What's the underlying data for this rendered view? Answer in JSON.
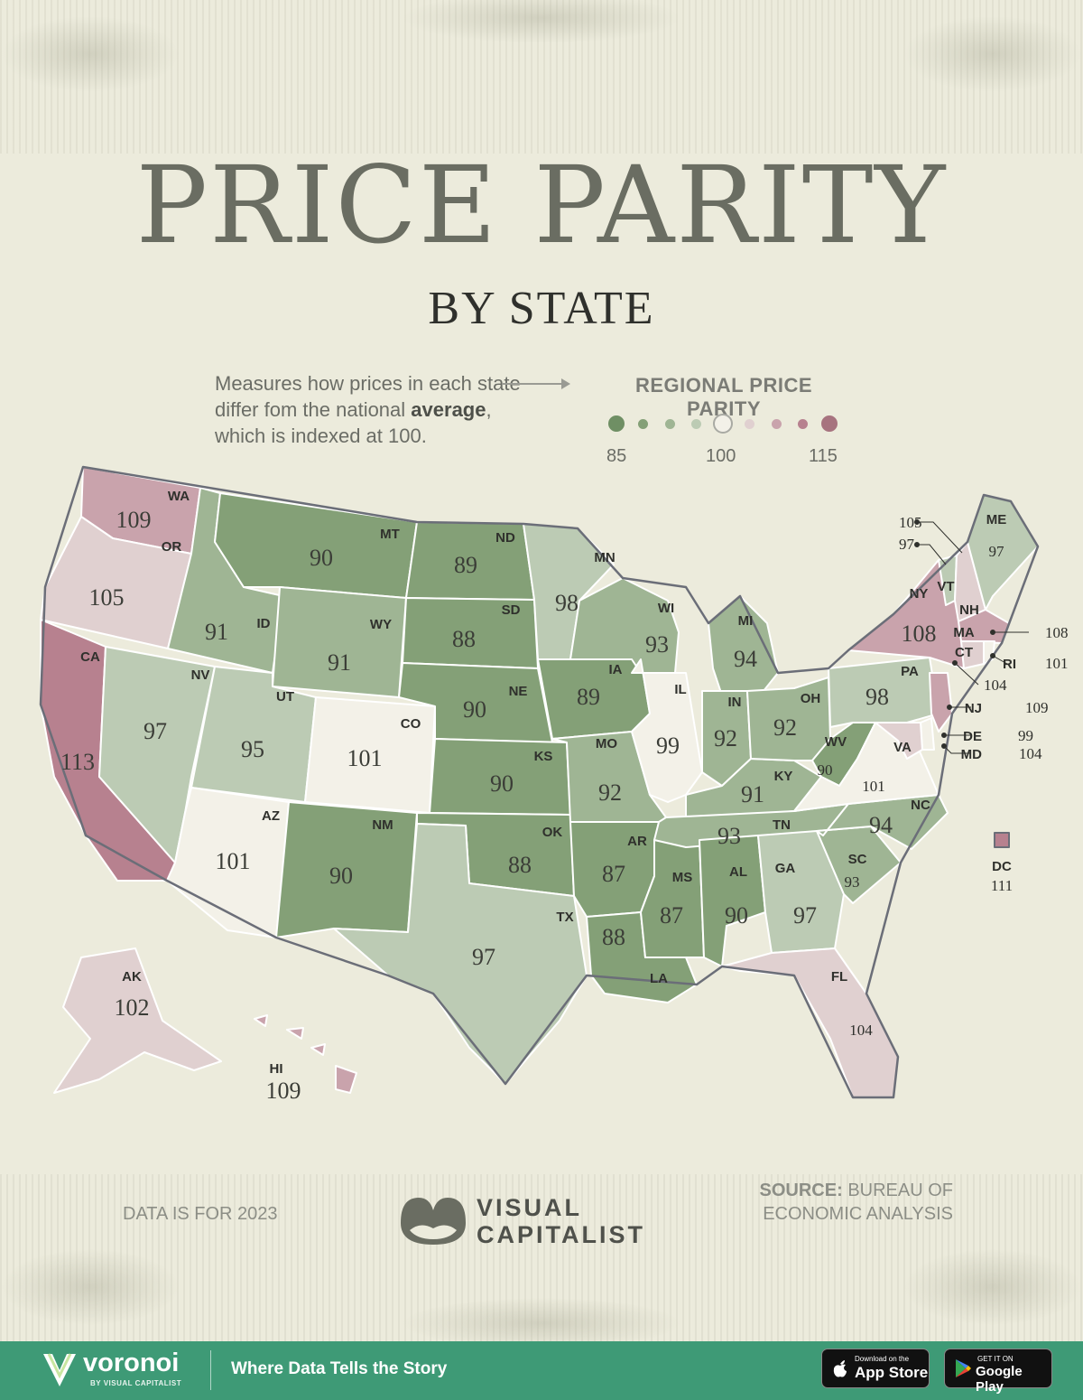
{
  "header": {
    "title": "PRICE PARITY",
    "subtitle": "BY STATE",
    "description_pre": "Measures how prices in each state differ fom the national ",
    "description_bold": "average",
    "description_post": ", which is indexed at 100."
  },
  "legend": {
    "title": "REGIONAL PRICE PARITY",
    "min_label": "85",
    "mid_label": "100",
    "max_label": "115",
    "scale_colors": [
      "#6f8f64",
      "#84a077",
      "#9fb594",
      "#bccbb4",
      "#f3f1e8",
      "#e0d0d0",
      "#c9a3ac",
      "#b7818f",
      "#a7737f"
    ]
  },
  "chart_data": {
    "type": "choropleth",
    "metric": "Regional Price Parity",
    "baseline": 100,
    "range": [
      85,
      115
    ],
    "states": [
      {
        "abbr": "WA",
        "value": 109
      },
      {
        "abbr": "OR",
        "value": 105
      },
      {
        "abbr": "CA",
        "value": 113
      },
      {
        "abbr": "ID",
        "value": 91
      },
      {
        "abbr": "NV",
        "value": 97
      },
      {
        "abbr": "MT",
        "value": 90
      },
      {
        "abbr": "WY",
        "value": 91
      },
      {
        "abbr": "UT",
        "value": 95
      },
      {
        "abbr": "AZ",
        "value": 101
      },
      {
        "abbr": "CO",
        "value": 101
      },
      {
        "abbr": "NM",
        "value": 90
      },
      {
        "abbr": "ND",
        "value": 89
      },
      {
        "abbr": "SD",
        "value": 88
      },
      {
        "abbr": "NE",
        "value": 90
      },
      {
        "abbr": "KS",
        "value": 90
      },
      {
        "abbr": "OK",
        "value": 88
      },
      {
        "abbr": "TX",
        "value": 97
      },
      {
        "abbr": "MN",
        "value": 98
      },
      {
        "abbr": "IA",
        "value": 89
      },
      {
        "abbr": "MO",
        "value": 92
      },
      {
        "abbr": "AR",
        "value": 87
      },
      {
        "abbr": "LA",
        "value": 88
      },
      {
        "abbr": "WI",
        "value": 93
      },
      {
        "abbr": "IL",
        "value": 99
      },
      {
        "abbr": "MS",
        "value": 87
      },
      {
        "abbr": "MI",
        "value": 94
      },
      {
        "abbr": "IN",
        "value": 92
      },
      {
        "abbr": "KY",
        "value": 91
      },
      {
        "abbr": "TN",
        "value": 93
      },
      {
        "abbr": "AL",
        "value": 90
      },
      {
        "abbr": "OH",
        "value": 92
      },
      {
        "abbr": "WV",
        "value": 90
      },
      {
        "abbr": "GA",
        "value": 97
      },
      {
        "abbr": "FL",
        "value": 104
      },
      {
        "abbr": "SC",
        "value": 93
      },
      {
        "abbr": "NC",
        "value": 94
      },
      {
        "abbr": "VA",
        "value": 101
      },
      {
        "abbr": "PA",
        "value": 98
      },
      {
        "abbr": "NY",
        "value": 108
      },
      {
        "abbr": "VT",
        "value": 97
      },
      {
        "abbr": "NH",
        "value": 105
      },
      {
        "abbr": "ME",
        "value": 97
      },
      {
        "abbr": "MA",
        "value": 108
      },
      {
        "abbr": "CT",
        "value": 104
      },
      {
        "abbr": "RI",
        "value": 101
      },
      {
        "abbr": "NJ",
        "value": 109
      },
      {
        "abbr": "DE",
        "value": 99
      },
      {
        "abbr": "MD",
        "value": 104
      },
      {
        "abbr": "DC",
        "value": 111
      },
      {
        "abbr": "AK",
        "value": 102
      },
      {
        "abbr": "HI",
        "value": 109
      }
    ]
  },
  "labels": {
    "WA": {
      "abbr": "WA",
      "value": "109"
    },
    "OR": {
      "abbr": "OR",
      "value": "105"
    },
    "CA": {
      "abbr": "CA",
      "value": "113"
    },
    "ID": {
      "abbr": "ID",
      "value": "91"
    },
    "NV": {
      "abbr": "NV",
      "value": "97"
    },
    "MT": {
      "abbr": "MT",
      "value": "90"
    },
    "WY": {
      "abbr": "WY",
      "value": "91"
    },
    "UT": {
      "abbr": "UT",
      "value": "95"
    },
    "AZ": {
      "abbr": "AZ",
      "value": "101"
    },
    "CO": {
      "abbr": "CO",
      "value": "101"
    },
    "NM": {
      "abbr": "NM",
      "value": "90"
    },
    "ND": {
      "abbr": "ND",
      "value": "89"
    },
    "SD": {
      "abbr": "SD",
      "value": "88"
    },
    "NE": {
      "abbr": "NE",
      "value": "90"
    },
    "KS": {
      "abbr": "KS",
      "value": "90"
    },
    "OK": {
      "abbr": "OK",
      "value": "88"
    },
    "TX": {
      "abbr": "TX",
      "value": "97"
    },
    "MN": {
      "abbr": "MN",
      "value": "98"
    },
    "IA": {
      "abbr": "IA",
      "value": "89"
    },
    "MO": {
      "abbr": "MO",
      "value": "92"
    },
    "AR": {
      "abbr": "AR",
      "value": "87"
    },
    "LA": {
      "abbr": "LA",
      "value": "88"
    },
    "WI": {
      "abbr": "WI",
      "value": "93"
    },
    "IL": {
      "abbr": "IL",
      "value": "99"
    },
    "MS": {
      "abbr": "MS",
      "value": "87"
    },
    "MI": {
      "abbr": "MI",
      "value": "94"
    },
    "IN": {
      "abbr": "IN",
      "value": "92"
    },
    "KY": {
      "abbr": "KY",
      "value": "91"
    },
    "TN": {
      "abbr": "TN",
      "value": "93"
    },
    "AL": {
      "abbr": "AL",
      "value": "90"
    },
    "OH": {
      "abbr": "OH",
      "value": "92"
    },
    "WV": {
      "abbr": "WV",
      "value": "90"
    },
    "GA": {
      "abbr": "GA",
      "value": "97"
    },
    "FL": {
      "abbr": "FL",
      "value": "104"
    },
    "SC": {
      "abbr": "SC",
      "value": "93"
    },
    "NC": {
      "abbr": "NC",
      "value": "94"
    },
    "VA": {
      "abbr": "VA",
      "value": "101"
    },
    "PA": {
      "abbr": "PA",
      "value": "98"
    },
    "NY": {
      "abbr": "NY",
      "value": "108"
    },
    "VT": {
      "abbr": "VT",
      "value": "97"
    },
    "NH": {
      "abbr": "NH",
      "value": "105"
    },
    "ME": {
      "abbr": "ME",
      "value": "97"
    },
    "MA": {
      "abbr": "MA",
      "value": "108"
    },
    "CT": {
      "abbr": "CT",
      "value": "104"
    },
    "RI": {
      "abbr": "RI",
      "value": "101"
    },
    "NJ": {
      "abbr": "NJ",
      "value": "109"
    },
    "DE": {
      "abbr": "DE",
      "value": "99"
    },
    "MD": {
      "abbr": "MD",
      "value": "104"
    },
    "DC": {
      "abbr": "DC",
      "value": "111"
    },
    "AK": {
      "abbr": "AK",
      "value": "102"
    },
    "HI": {
      "abbr": "HI",
      "value": "109"
    }
  },
  "footer_notes": {
    "data_year": "DATA IS FOR 2023",
    "source_label": "SOURCE:",
    "source_text": "BUREAU OF ECONOMIC ANALYSIS",
    "brand_line1": "VISUAL",
    "brand_line2": "CAPITALIST"
  },
  "footer": {
    "brand": "voronoi",
    "brand_by": "BY VISUAL CAPITALIST",
    "tagline": "Where Data Tells the Story",
    "app_store_small": "Download on the",
    "app_store_big": "App Store",
    "google_play_small": "GET IT ON",
    "google_play_big": "Google Play",
    "brand_color": "#3e9a76"
  }
}
